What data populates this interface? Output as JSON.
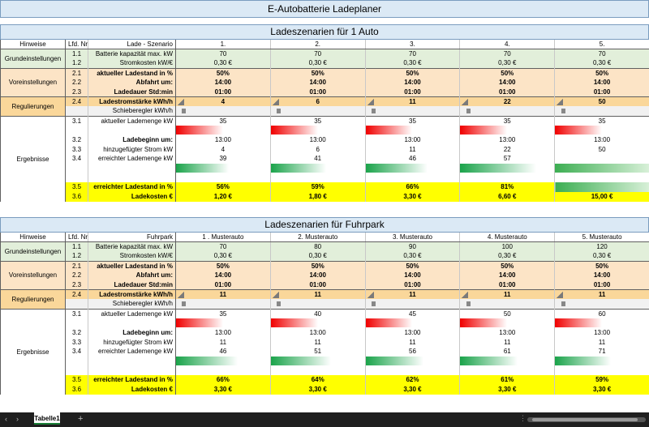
{
  "title": "E-Autobatterie Ladeplaner",
  "header_cols": {
    "hinweise": "Hinweise",
    "lfd": "Lfd. Nr."
  },
  "groups": {
    "grund": "Grundeinstellungen",
    "vor": "Voreinstellungen",
    "reg": "Regulierungen",
    "erg": "Ergebnisse"
  },
  "labels": {
    "batt": "Batterie kapazität max. kW",
    "strom": "Stromkosten  kW/€",
    "akt": "aktueller Ladestand in %",
    "abf": "Abfahrt um:",
    "dauer": "Ladedauer  Std:min",
    "lst": "Ladestromstärke kWh/h",
    "schieb": "Schieberegler kWh/h",
    "aktmenge": "aktueller Lademenge kW",
    "beginn": "Ladebeginn um:",
    "hinzu": "hinzugefügter Strom kW",
    "erreicht": "erreichter Lademenge kW",
    "erreichtpct": "erreichter Ladestand in %",
    "kosten": "Ladekosten €"
  },
  "nums": {
    "n11": "1.1",
    "n12": "1.2",
    "n21": "2.1",
    "n22": "2.2",
    "n23": "2.3",
    "n24": "2.4",
    "n31": "3.1",
    "n32": "3.2",
    "n33": "3.3",
    "n34": "3.4",
    "n35": "3.5",
    "n36": "3.6"
  },
  "s1": {
    "title": "Ladeszenarien für 1 Auto",
    "scen_label": "Lade - Szenario",
    "cols": [
      {
        "name": "1.",
        "batt": "70",
        "strom": "0,30 €",
        "akt": "50%",
        "abf": "14:00",
        "dauer": "01:00",
        "lst": "4",
        "aktmenge": "35",
        "beginn": "13:00",
        "hinzu": "4",
        "erreicht": "39",
        "erreichtpct": "56%",
        "kosten": "1,20 €",
        "red_fill": 0.5,
        "green_fill": 0.56
      },
      {
        "name": "2.",
        "batt": "70",
        "strom": "0,30 €",
        "akt": "50%",
        "abf": "14:00",
        "dauer": "01:00",
        "lst": "6",
        "aktmenge": "35",
        "beginn": "13:00",
        "hinzu": "6",
        "erreicht": "41",
        "erreichtpct": "59%",
        "kosten": "1,80 €",
        "red_fill": 0.5,
        "green_fill": 0.59
      },
      {
        "name": "3.",
        "batt": "70",
        "strom": "0,30 €",
        "akt": "50%",
        "abf": "14:00",
        "dauer": "01:00",
        "lst": "11",
        "aktmenge": "35",
        "beginn": "13:00",
        "hinzu": "11",
        "erreicht": "46",
        "erreichtpct": "66%",
        "kosten": "3,30 €",
        "red_fill": 0.5,
        "green_fill": 0.66
      },
      {
        "name": "4.",
        "batt": "70",
        "strom": "0,30 €",
        "akt": "50%",
        "abf": "14:00",
        "dauer": "01:00",
        "lst": "22",
        "aktmenge": "35",
        "beginn": "13:00",
        "hinzu": "22",
        "erreicht": "57",
        "erreichtpct": "81%",
        "kosten": "6,60 €",
        "red_fill": 0.5,
        "green_fill": 0.81
      },
      {
        "name": "5.",
        "batt": "70",
        "strom": "0,30 €",
        "akt": "50%",
        "abf": "14:00",
        "dauer": "01:00",
        "lst": "50",
        "aktmenge": "35",
        "beginn": "13:00",
        "hinzu": "50",
        "erreicht": "",
        "erreichtpct": "",
        "kosten": "15,00 €",
        "red_fill": 0.5,
        "green_fill": 1.0
      }
    ]
  },
  "s2": {
    "title": "Ladeszenarien für Fuhrpark",
    "scen_label": "Fuhrpark",
    "cols": [
      {
        "name": "1 . Musterauto",
        "batt": "70",
        "strom": "0,30 €",
        "akt": "50%",
        "abf": "14:00",
        "dauer": "01:00",
        "lst": "11",
        "aktmenge": "35",
        "beginn": "13:00",
        "hinzu": "11",
        "erreicht": "46",
        "erreichtpct": "66%",
        "kosten": "3,30 €",
        "red_fill": 0.5,
        "green_fill": 0.66
      },
      {
        "name": "2. Musterauto",
        "batt": "80",
        "strom": "0,30 €",
        "akt": "50%",
        "abf": "14:00",
        "dauer": "01:00",
        "lst": "11",
        "aktmenge": "40",
        "beginn": "13:00",
        "hinzu": "11",
        "erreicht": "51",
        "erreichtpct": "64%",
        "kosten": "3,30 €",
        "red_fill": 0.5,
        "green_fill": 0.64
      },
      {
        "name": "3. Musterauto",
        "batt": "90",
        "strom": "0,30 €",
        "akt": "50%",
        "abf": "14:00",
        "dauer": "01:00",
        "lst": "11",
        "aktmenge": "45",
        "beginn": "13:00",
        "hinzu": "11",
        "erreicht": "56",
        "erreichtpct": "62%",
        "kosten": "3,30 €",
        "red_fill": 0.5,
        "green_fill": 0.62
      },
      {
        "name": "4. Musterauto",
        "batt": "100",
        "strom": "0,30 €",
        "akt": "50%",
        "abf": "14:00",
        "dauer": "01:00",
        "lst": "11",
        "aktmenge": "50",
        "beginn": "13:00",
        "hinzu": "11",
        "erreicht": "61",
        "erreichtpct": "61%",
        "kosten": "3,30 €",
        "red_fill": 0.5,
        "green_fill": 0.61
      },
      {
        "name": "5. Musterauto",
        "batt": "120",
        "strom": "0,30 €",
        "akt": "50%",
        "abf": "14:00",
        "dauer": "01:00",
        "lst": "11",
        "aktmenge": "60",
        "beginn": "13:00",
        "hinzu": "11",
        "erreicht": "71",
        "erreichtpct": "59%",
        "kosten": "3,30 €",
        "red_fill": 0.5,
        "green_fill": 0.59
      }
    ]
  },
  "sheet_tab": "Tabelle1",
  "add_tab_icon": "+"
}
